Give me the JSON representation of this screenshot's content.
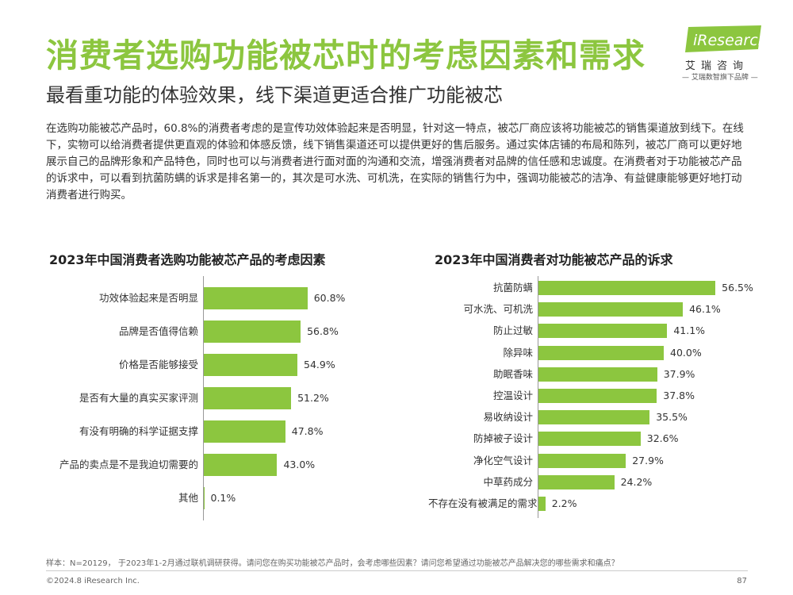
{
  "header": {
    "title": "消费者选购功能被芯时的考虑因素和需求",
    "subtitle": "最看重功能的体验效果，线下渠道更适合推广功能被芯"
  },
  "logo": {
    "brand": "iResearch",
    "cn_name": "艾瑞咨询",
    "tagline": "— 艾瑞数智旗下品牌 —"
  },
  "body": {
    "paragraph": "在选购功能被芯产品时，60.8%的消费者考虑的是宣传功效体验起来是否明显，针对这一特点，被芯厂商应该将功能被芯的销售渠道放到线下。在线下，实物可以给消费者提供更直观的体验和体感反馈，线下销售渠道还可以提供更好的售后服务。通过实体店铺的布局和陈列，被芯厂商可以更好地展示自己的品牌形象和产品特色，同时也可以与消费者进行面对面的沟通和交流，增强消费者对品牌的信任感和忠诚度。在消费者对于功能被芯产品的诉求中，可以看到抗菌防螨的诉求是排名第一的，其次是可水洗、可机洗，在实际的销售行为中，强调功能被芯的洁净、有益健康能够更好地打动消费者进行购买。"
  },
  "colors": {
    "accent": "#8cc63f"
  },
  "chart_data": [
    {
      "type": "bar",
      "orientation": "horizontal",
      "title": "2023年中国消费者选购功能被芯产品的考虑因素",
      "categories": [
        "功效体验起来是否明显",
        "品牌是否值得信赖",
        "价格是否能够接受",
        "是否有大量的真实买家评测",
        "有没有明确的科学证据支撑",
        "产品的卖点是不是我迫切需要的",
        "其他"
      ],
      "values": [
        60.8,
        56.8,
        54.9,
        51.2,
        47.8,
        43.0,
        0.1
      ],
      "value_labels": [
        "60.8%",
        "56.8%",
        "54.9%",
        "51.2%",
        "47.8%",
        "43.0%",
        "0.1%"
      ],
      "unit": "%",
      "xlim": [
        0,
        100
      ]
    },
    {
      "type": "bar",
      "orientation": "horizontal",
      "title": "2023年中国消费者对功能被芯产品的诉求",
      "categories": [
        "抗菌防螨",
        "可水洗、可机洗",
        "防止过敏",
        "除异味",
        "助眠香味",
        "控温设计",
        "易收纳设计",
        "防掉被子设计",
        "净化空气设计",
        "中草药成分",
        "不存在没有被满足的需求"
      ],
      "values": [
        56.5,
        46.1,
        41.1,
        40.0,
        37.9,
        37.8,
        35.5,
        32.6,
        27.9,
        24.2,
        2.2
      ],
      "value_labels": [
        "56.5%",
        "46.1%",
        "41.1%",
        "40.0%",
        "37.9%",
        "37.8%",
        "35.5%",
        "32.6%",
        "27.9%",
        "24.2%",
        "2.2%"
      ],
      "unit": "%",
      "xlim": [
        0,
        100
      ]
    }
  ],
  "footer": {
    "note": "样本：N=20129， 于2023年1-2月通过联机调研获得。请问您在购买功能被芯产品时，会考虑哪些因素？请问您希望通过功能被芯产品解决您的哪些需求和痛点？",
    "copyright": "©2024.8 iResearch Inc.",
    "page": "87"
  }
}
